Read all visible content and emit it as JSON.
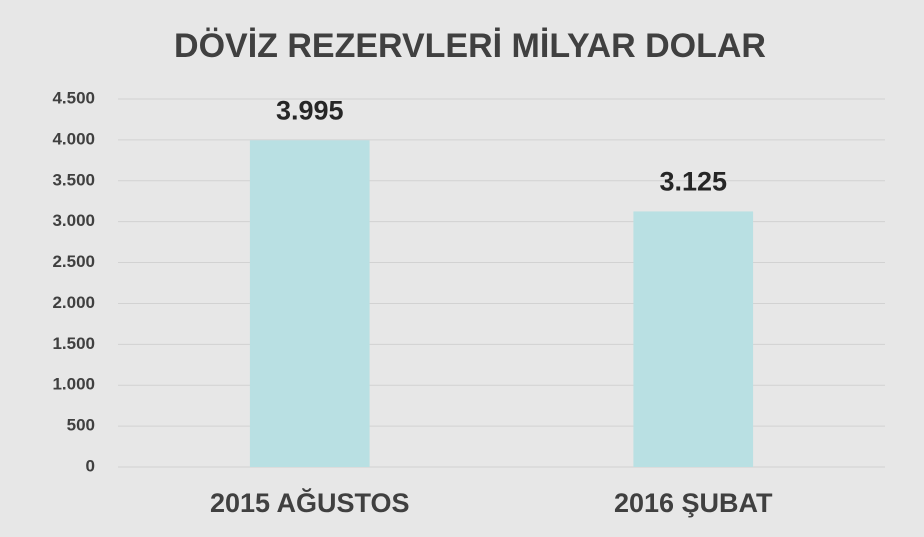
{
  "chart_data": {
    "type": "bar",
    "title": "DÖVİZ REZERVLERİ MİLYAR DOLAR",
    "categories": [
      "2015 AĞUSTOS",
      "2016 ŞUBAT"
    ],
    "values": [
      3995,
      3125
    ],
    "value_labels": [
      "3.995",
      "3.125"
    ],
    "color": "#b9e0e3",
    "ylim": [
      0,
      4500
    ],
    "yticks": [
      0,
      500,
      {
        "value": 1000,
        "label": "1.000"
      },
      {
        "value": 1500,
        "label": "1.500"
      },
      {
        "value": 2000,
        "label": "2.000"
      },
      {
        "value": 2500,
        "label": "2.500"
      },
      {
        "value": 3000,
        "label": "3.000"
      },
      {
        "value": 3500,
        "label": "3.500"
      },
      {
        "value": 4000,
        "label": "4.000"
      },
      {
        "value": 4500,
        "label": "4.500"
      }
    ],
    "grid": true
  }
}
